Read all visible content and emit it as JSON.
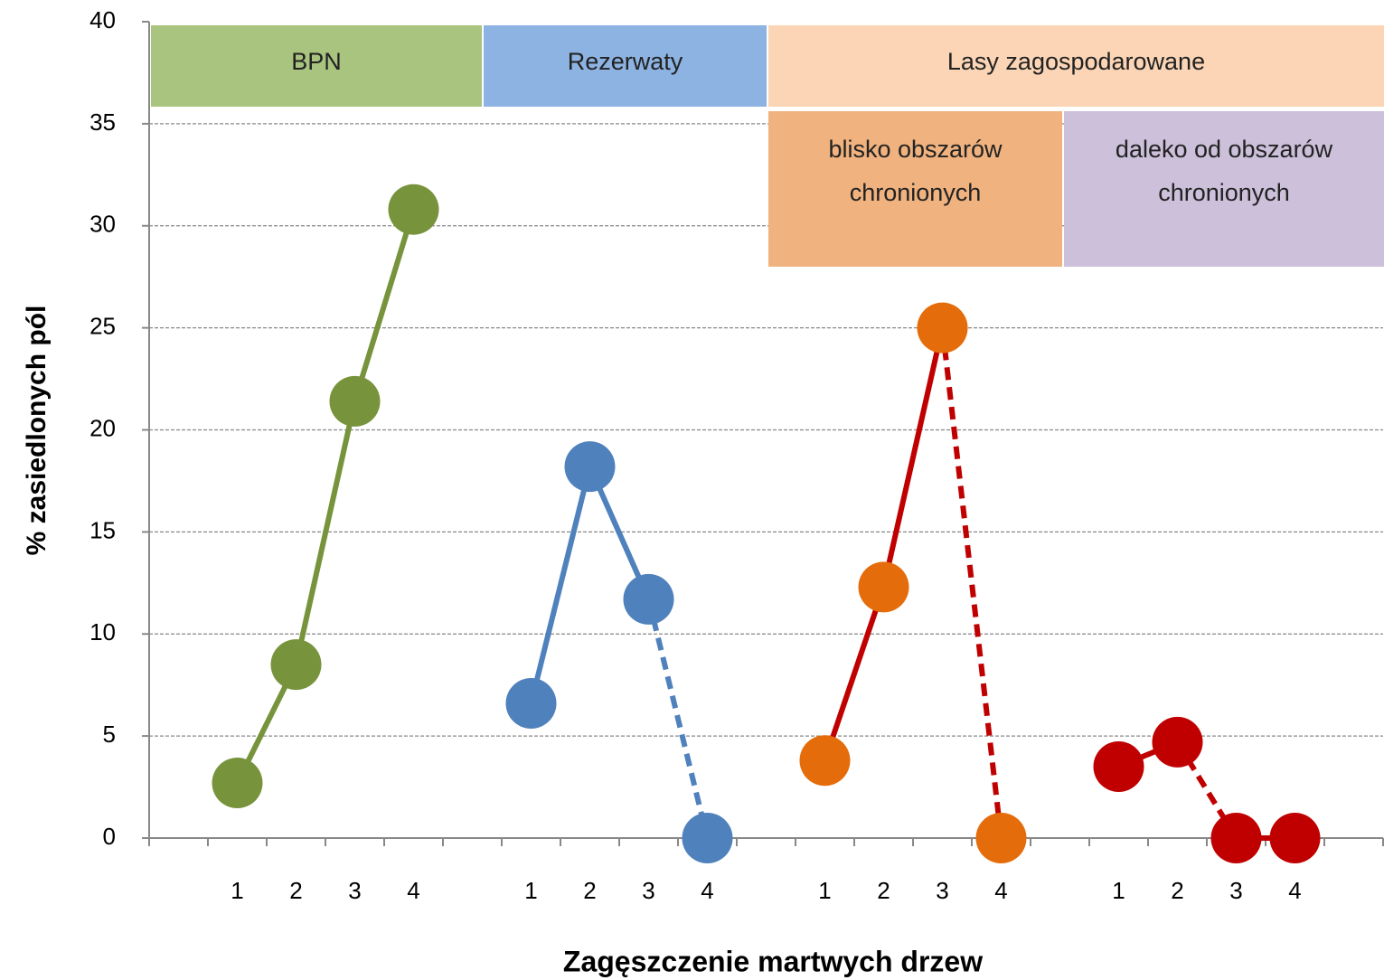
{
  "chart_data": {
    "type": "line",
    "x_label": "Zagęszczenie martwych drzew",
    "y_label": "% zasiedlonych pól",
    "categories": [
      null,
      "1",
      "2",
      "3",
      "4",
      null,
      "1",
      "2",
      "3",
      "4",
      null,
      "1",
      "2",
      "3",
      "4",
      null,
      "1",
      "2",
      "3",
      "4",
      null
    ],
    "series": [
      {
        "line_color": "#77933c",
        "color": "#77933c",
        "dashed_segments": [],
        "values": [
          null,
          2.7,
          8.5,
          21.4,
          30.8,
          null,
          null,
          null,
          null,
          null,
          null,
          null,
          null,
          null,
          null,
          null,
          null,
          null,
          null,
          null,
          null
        ]
      },
      {
        "line_color": "#4f81bd",
        "color": "#4f81bd",
        "dashed_segments": [
          8
        ],
        "values": [
          null,
          null,
          null,
          null,
          null,
          null,
          6.6,
          18.2,
          11.7,
          0,
          null,
          null,
          null,
          null,
          null,
          null,
          null,
          null,
          null,
          null,
          null
        ]
      },
      {
        "line_color": "#c00000",
        "color": "#e46c0a",
        "dashed_segments": [
          13
        ],
        "values": [
          null,
          null,
          null,
          null,
          null,
          null,
          null,
          null,
          null,
          null,
          null,
          3.8,
          12.3,
          25,
          0,
          null,
          null,
          null,
          null,
          null,
          null
        ]
      },
      {
        "line_color": "#c00000",
        "color": "#c00000",
        "dashed_segments": [
          17
        ],
        "values": [
          null,
          null,
          null,
          null,
          null,
          null,
          null,
          null,
          null,
          null,
          null,
          null,
          null,
          null,
          null,
          null,
          3.5,
          4.7,
          0,
          0,
          null
        ]
      }
    ],
    "ylim": [
      0,
      40
    ],
    "yticks": [
      0,
      5,
      10,
      15,
      20,
      25,
      30,
      35,
      40
    ],
    "grid": true,
    "annotations": [
      {
        "text": "BPN"
      },
      {
        "text": "Rezerwaty"
      },
      {
        "text": "Lasy zagospodarowane"
      },
      {
        "text": "blisko obszarów chronionych"
      },
      {
        "text": "daleko od obszarów chronionych"
      }
    ]
  }
}
